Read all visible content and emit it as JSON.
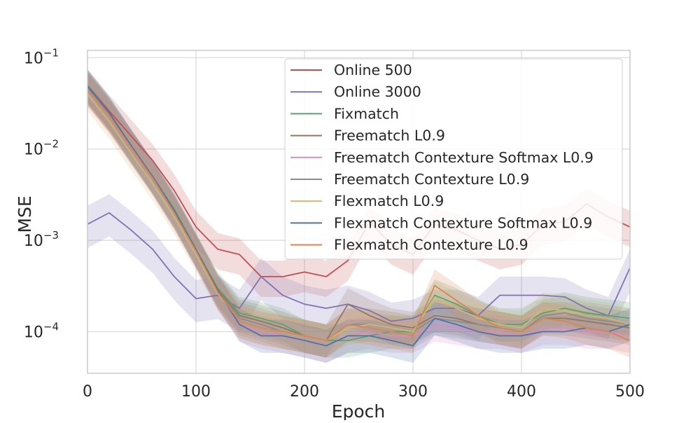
{
  "chart_data": {
    "type": "line",
    "title": "",
    "xlabel": "Epoch",
    "ylabel": "MSE",
    "xlim": [
      0,
      500
    ],
    "ylim": [
      3.5e-05,
      0.12
    ],
    "yscale": "log",
    "grid": true,
    "legend_position": "top-right",
    "x_ticks": [
      {
        "value": 0,
        "label": "0"
      },
      {
        "value": 100,
        "label": "100"
      },
      {
        "value": 200,
        "label": "200"
      },
      {
        "value": 300,
        "label": "300"
      },
      {
        "value": 400,
        "label": "400"
      },
      {
        "value": 500,
        "label": "500"
      }
    ],
    "y_ticks": [
      {
        "value": 0.1,
        "base": "10",
        "exp": "−1"
      },
      {
        "value": 0.01,
        "base": "10",
        "exp": "−2"
      },
      {
        "value": 0.001,
        "base": "10",
        "exp": "−3"
      },
      {
        "value": 0.0001,
        "base": "10",
        "exp": "−4"
      }
    ],
    "x": [
      0,
      20,
      40,
      60,
      80,
      100,
      120,
      140,
      160,
      180,
      200,
      220,
      240,
      260,
      280,
      300,
      320,
      340,
      360,
      380,
      400,
      420,
      440,
      460,
      480,
      500
    ],
    "series": [
      {
        "name": "Online 500",
        "color": "#c44e52",
        "band_low": 0.6,
        "band_high": 1.5,
        "values": [
          0.05,
          0.026,
          0.014,
          0.0075,
          0.0035,
          0.0014,
          0.0008,
          0.0007,
          0.0004,
          0.0004,
          0.00045,
          0.0004,
          0.0006,
          0.0016,
          0.0009,
          0.0007,
          0.0015,
          0.0013,
          0.001,
          0.0008,
          0.0009,
          0.0015,
          0.0016,
          0.0025,
          0.0018,
          0.0014
        ]
      },
      {
        "name": "Online 3000",
        "color": "#8172b3",
        "band_low": 0.55,
        "band_high": 1.6,
        "values": [
          0.0015,
          0.002,
          0.0013,
          0.0008,
          0.0004,
          0.00023,
          0.00025,
          0.00018,
          0.0004,
          0.00025,
          0.0002,
          0.00018,
          0.0002,
          0.00017,
          0.00013,
          0.00014,
          0.00018,
          0.00018,
          0.00015,
          0.00025,
          0.00025,
          0.00025,
          0.00024,
          0.00018,
          0.00015,
          0.0005
        ]
      },
      {
        "name": "Fixmatch",
        "color": "#55a868",
        "band_low": 0.65,
        "band_high": 1.5,
        "values": [
          0.05,
          0.025,
          0.011,
          0.005,
          0.0022,
          0.0008,
          0.0003,
          0.00016,
          0.00014,
          0.00012,
          9e-05,
          8e-05,
          8e-05,
          9e-05,
          0.0001,
          0.0001,
          0.00025,
          0.0002,
          0.00015,
          0.00012,
          0.00012,
          0.00016,
          0.00018,
          0.00016,
          0.00015,
          0.00014
        ]
      },
      {
        "name": "Freematch L0.9",
        "color": "#937860",
        "band_low": 0.65,
        "band_high": 1.5,
        "values": [
          0.048,
          0.024,
          0.011,
          0.005,
          0.0021,
          0.00078,
          0.00029,
          0.00015,
          0.00013,
          0.00011,
          9e-05,
          8e-05,
          0.0002,
          0.00015,
          0.00012,
          0.00011,
          0.00015,
          0.00014,
          0.00012,
          0.00011,
          0.0001,
          0.00014,
          0.00014,
          0.00013,
          0.00012,
          0.00011
        ]
      },
      {
        "name": "Freematch Contexture Softmax L0.9",
        "color": "#da8bc3",
        "band_low": 0.65,
        "band_high": 1.5,
        "values": [
          0.046,
          0.023,
          0.0105,
          0.0048,
          0.002,
          0.00075,
          0.00027,
          0.00012,
          0.0001,
          9e-05,
          8e-05,
          7e-05,
          9e-05,
          0.0001,
          9e-05,
          9e-05,
          0.00012,
          0.00011,
          0.0001,
          0.0001,
          9e-05,
          0.00011,
          0.00011,
          0.0001,
          0.0001,
          9e-05
        ]
      },
      {
        "name": "Freematch Contexture L0.9",
        "color": "#8c8c8c",
        "band_low": 0.65,
        "band_high": 1.5,
        "values": [
          0.047,
          0.024,
          0.011,
          0.005,
          0.0021,
          0.00077,
          0.00028,
          0.00014,
          0.00012,
          0.0001,
          9e-05,
          8e-05,
          0.00012,
          0.00012,
          0.00011,
          0.0001,
          0.00014,
          0.00013,
          0.00012,
          0.00011,
          0.0001,
          0.00015,
          0.00016,
          0.00014,
          0.00013,
          0.00012
        ]
      },
      {
        "name": "Flexmatch L0.9",
        "color": "#ccb974",
        "band_low": 0.65,
        "band_high": 1.5,
        "values": [
          0.04,
          0.02,
          0.009,
          0.0042,
          0.0018,
          0.0007,
          0.00026,
          0.00013,
          0.00011,
          0.0001,
          9e-05,
          8e-05,
          0.00011,
          0.00012,
          0.00011,
          0.0001,
          0.00024,
          0.00018,
          0.00014,
          0.00012,
          0.00011,
          0.00018,
          0.00017,
          0.00015,
          0.00014,
          0.00012
        ]
      },
      {
        "name": "Flexmatch Contexture Softmax L0.9",
        "color": "#4c72b0",
        "band_low": 0.65,
        "band_high": 1.5,
        "values": [
          0.049,
          0.025,
          0.011,
          0.005,
          0.0021,
          0.00079,
          0.00028,
          0.00012,
          9e-05,
          9e-05,
          8e-05,
          7e-05,
          9e-05,
          9e-05,
          8e-05,
          7e-05,
          0.00014,
          0.00012,
          0.0001,
          9e-05,
          9e-05,
          0.0001,
          0.0001,
          0.00011,
          0.0001,
          0.00012
        ]
      },
      {
        "name": "Flexmatch Contexture L0.9",
        "color": "#dd8452",
        "band_low": 0.65,
        "band_high": 1.5,
        "values": [
          0.045,
          0.023,
          0.0105,
          0.0048,
          0.002,
          0.00076,
          0.00027,
          0.00013,
          0.00011,
          0.0001,
          9e-05,
          8e-05,
          0.00012,
          0.00011,
          0.0001,
          9e-05,
          0.00032,
          0.00022,
          0.00015,
          0.00011,
          0.0001,
          0.00014,
          0.00013,
          0.00011,
          0.0001,
          8e-05
        ]
      }
    ]
  }
}
